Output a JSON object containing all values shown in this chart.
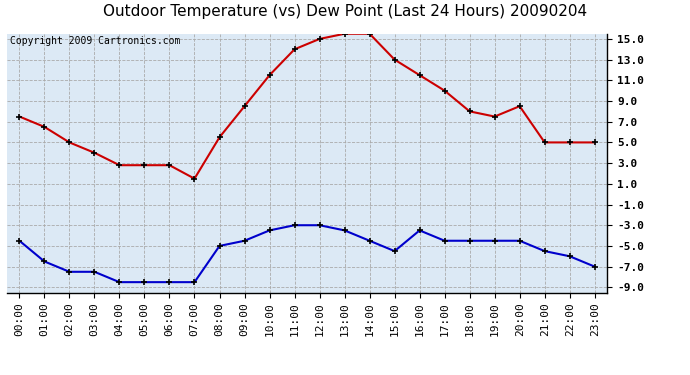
{
  "title": "Outdoor Temperature (vs) Dew Point (Last 24 Hours) 20090204",
  "copyright": "Copyright 2009 Cartronics.com",
  "x_labels": [
    "00:00",
    "01:00",
    "02:00",
    "03:00",
    "04:00",
    "05:00",
    "06:00",
    "07:00",
    "08:00",
    "09:00",
    "10:00",
    "11:00",
    "12:00",
    "13:00",
    "14:00",
    "15:00",
    "16:00",
    "17:00",
    "18:00",
    "19:00",
    "20:00",
    "21:00",
    "22:00",
    "23:00"
  ],
  "temp_values": [
    7.5,
    6.5,
    5.0,
    4.0,
    2.8,
    2.8,
    2.8,
    1.5,
    5.5,
    8.5,
    11.5,
    14.0,
    15.0,
    15.5,
    15.5,
    13.0,
    11.5,
    10.0,
    8.0,
    7.5,
    8.5,
    5.0,
    5.0,
    5.0
  ],
  "dew_values": [
    -4.5,
    -6.5,
    -7.5,
    -7.5,
    -8.5,
    -8.5,
    -8.5,
    -8.5,
    -5.0,
    -4.5,
    -3.5,
    -3.0,
    -3.0,
    -3.5,
    -4.5,
    -5.5,
    -3.5,
    -4.5,
    -4.5,
    -4.5,
    -4.5,
    -5.5,
    -6.0,
    -7.0
  ],
  "temp_color": "#cc0000",
  "dew_color": "#0000cc",
  "bg_color": "#ffffff",
  "plot_bg": "#dce9f5",
  "grid_color": "#aaaaaa",
  "ylim_min": -9.5,
  "ylim_max": 15.5,
  "yticks": [
    -9.0,
    -7.0,
    -5.0,
    -3.0,
    -1.0,
    1.0,
    3.0,
    5.0,
    7.0,
    9.0,
    11.0,
    13.0,
    15.0
  ],
  "ytick_labels": [
    "-9.0",
    "-7.0",
    "-5.0",
    "-3.0",
    "-1.0",
    "1.0",
    "3.0",
    "5.0",
    "7.0",
    "9.0",
    "11.0",
    "13.0",
    "15.0"
  ],
  "title_fontsize": 11,
  "tick_fontsize": 8,
  "copyright_fontsize": 7,
  "marker_size": 5,
  "line_width": 1.5
}
